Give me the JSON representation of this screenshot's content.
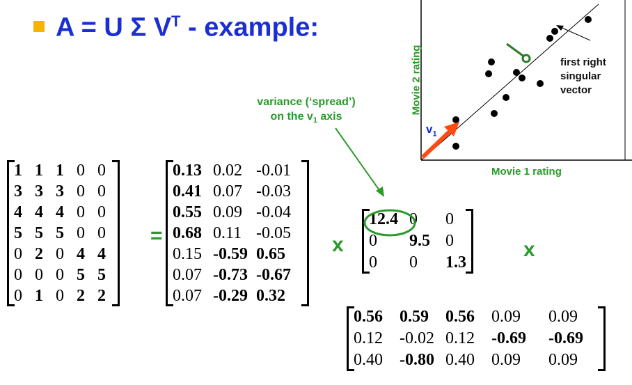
{
  "slide": {
    "title_main": "A = U Σ V",
    "title_sup": "T",
    "title_tail": " - example:"
  },
  "annotation": {
    "line1": "variance (‘spread’)",
    "line2_pre": "on the v",
    "line2_sub": "1",
    "line2_post": " axis"
  },
  "plot": {
    "ylabel": "Movie 2 rating",
    "xlabel": "Movie 1 rating",
    "vector_label": "v",
    "vector_sub": "1",
    "callout": [
      "first right",
      "singular",
      "vector"
    ],
    "colors": {
      "axis_label": "#2a9a2a",
      "vector": "#ff4a12",
      "projection": "#2a7a2a",
      "v_label": "#1a2ed4"
    }
  },
  "operators": {
    "equals": "=",
    "times1": "x",
    "times2": "x"
  },
  "matrices": {
    "A": [
      [
        {
          "v": "1",
          "b": true
        },
        {
          "v": "1",
          "b": true
        },
        {
          "v": "1",
          "b": true
        },
        {
          "v": "0",
          "b": false
        },
        {
          "v": "0",
          "b": false
        }
      ],
      [
        {
          "v": "3",
          "b": true
        },
        {
          "v": "3",
          "b": true
        },
        {
          "v": "3",
          "b": true
        },
        {
          "v": "0",
          "b": false
        },
        {
          "v": "0",
          "b": false
        }
      ],
      [
        {
          "v": "4",
          "b": true
        },
        {
          "v": "4",
          "b": true
        },
        {
          "v": "4",
          "b": true
        },
        {
          "v": "0",
          "b": false
        },
        {
          "v": "0",
          "b": false
        }
      ],
      [
        {
          "v": "5",
          "b": true
        },
        {
          "v": "5",
          "b": true
        },
        {
          "v": "5",
          "b": true
        },
        {
          "v": "0",
          "b": false
        },
        {
          "v": "0",
          "b": false
        }
      ],
      [
        {
          "v": "0",
          "b": false
        },
        {
          "v": "2",
          "b": true
        },
        {
          "v": "0",
          "b": false
        },
        {
          "v": "4",
          "b": true
        },
        {
          "v": "4",
          "b": true
        }
      ],
      [
        {
          "v": "0",
          "b": false
        },
        {
          "v": "0",
          "b": false
        },
        {
          "v": "0",
          "b": false
        },
        {
          "v": "5",
          "b": true
        },
        {
          "v": "5",
          "b": true
        }
      ],
      [
        {
          "v": "0",
          "b": false
        },
        {
          "v": "1",
          "b": true
        },
        {
          "v": "0",
          "b": false
        },
        {
          "v": "2",
          "b": true
        },
        {
          "v": "2",
          "b": true
        }
      ]
    ],
    "U": [
      [
        {
          "v": "0.13",
          "b": true
        },
        {
          "v": "0.02",
          "b": false
        },
        {
          "v": "-0.01",
          "b": false
        }
      ],
      [
        {
          "v": "0.41",
          "b": true
        },
        {
          "v": "0.07",
          "b": false
        },
        {
          "v": "-0.03",
          "b": false
        }
      ],
      [
        {
          "v": "0.55",
          "b": true
        },
        {
          "v": "0.09",
          "b": false
        },
        {
          "v": "-0.04",
          "b": false
        }
      ],
      [
        {
          "v": "0.68",
          "b": true
        },
        {
          "v": "0.11",
          "b": false
        },
        {
          "v": "-0.05",
          "b": false
        }
      ],
      [
        {
          "v": "0.15",
          "b": false
        },
        {
          "v": "-0.59",
          "b": true
        },
        {
          "v": "0.65",
          "b": true
        }
      ],
      [
        {
          "v": "0.07",
          "b": false
        },
        {
          "v": "-0.73",
          "b": true
        },
        {
          "v": "-0.67",
          "b": true
        }
      ],
      [
        {
          "v": "0.07",
          "b": false
        },
        {
          "v": "-0.29",
          "b": true
        },
        {
          "v": "0.32",
          "b": true
        }
      ]
    ],
    "Sigma": [
      [
        {
          "v": "12.4",
          "b": true
        },
        {
          "v": "0",
          "b": false
        },
        {
          "v": "0",
          "b": false
        }
      ],
      [
        {
          "v": "0",
          "b": false
        },
        {
          "v": "9.5",
          "b": true
        },
        {
          "v": "0",
          "b": false
        }
      ],
      [
        {
          "v": "0",
          "b": false
        },
        {
          "v": "0",
          "b": false
        },
        {
          "v": "1.3",
          "b": true
        }
      ]
    ],
    "VT": [
      [
        {
          "v": "0.56",
          "b": true
        },
        {
          "v": "0.59",
          "b": true
        },
        {
          "v": "0.56",
          "b": true
        },
        {
          "v": "0.09",
          "b": false
        },
        {
          "v": "0.09",
          "b": false
        }
      ],
      [
        {
          "v": "0.12",
          "b": false
        },
        {
          "v": "-0.02",
          "b": false
        },
        {
          "v": "0.12",
          "b": false
        },
        {
          "v": "-0.69",
          "b": true
        },
        {
          "v": "-0.69",
          "b": true
        }
      ],
      [
        {
          "v": "0.40",
          "b": false
        },
        {
          "v": "-0.80",
          "b": true
        },
        {
          "v": "0.40",
          "b": false
        },
        {
          "v": "0.09",
          "b": false
        },
        {
          "v": "0.09",
          "b": false
        }
      ]
    ]
  }
}
